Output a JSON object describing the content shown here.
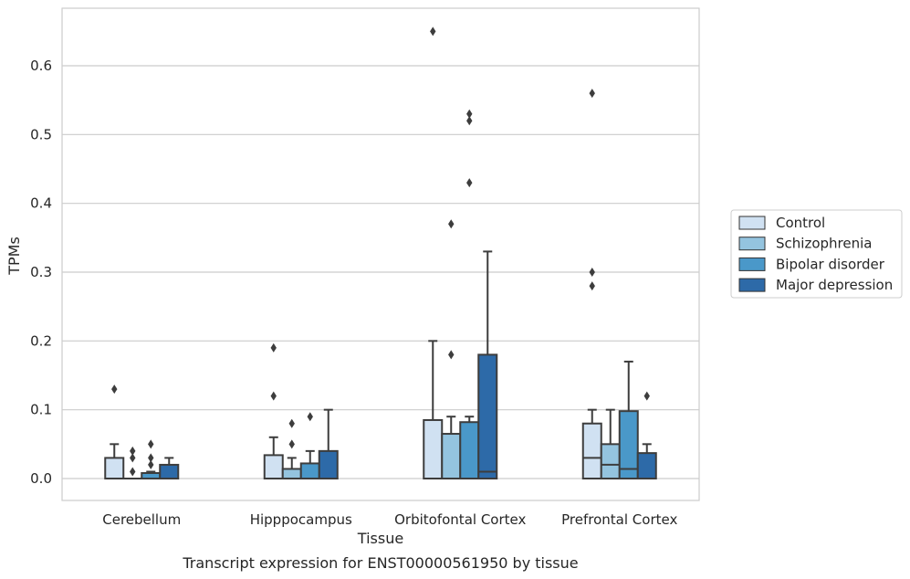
{
  "chart_data": {
    "type": "box",
    "title": "",
    "caption": "Transcript expression for ENST00000561950 by tissue",
    "xlabel": "Tissue",
    "ylabel": "TPMs",
    "ylim": [
      -0.032,
      0.685
    ],
    "yticks": [
      0.0,
      0.1,
      0.2,
      0.3,
      0.4,
      0.5,
      0.6
    ],
    "ytick_labels": [
      "0.0",
      "0.1",
      "0.2",
      "0.3",
      "0.4",
      "0.5",
      "0.6"
    ],
    "grid": "horizontal",
    "legend_position": "right",
    "categories": [
      "Cerebellum",
      "Hipppocampus",
      "Orbitofontal Cortex",
      "Prefrontal Cortex"
    ],
    "series": [
      {
        "name": "Control",
        "color": "#d0e1f2",
        "boxes": [
          {
            "q1": 0.0,
            "median": 0.0,
            "q3": 0.03,
            "whisker_low": 0.0,
            "whisker_high": 0.05,
            "outliers": [
              0.13
            ]
          },
          {
            "q1": 0.0,
            "median": 0.0,
            "q3": 0.034,
            "whisker_low": 0.0,
            "whisker_high": 0.06,
            "outliers": [
              0.12,
              0.19
            ]
          },
          {
            "q1": 0.0,
            "median": 0.0,
            "q3": 0.085,
            "whisker_low": 0.0,
            "whisker_high": 0.2,
            "outliers": [
              0.65
            ]
          },
          {
            "q1": 0.0,
            "median": 0.03,
            "q3": 0.08,
            "whisker_low": 0.0,
            "whisker_high": 0.1,
            "outliers": [
              0.28,
              0.3,
              0.56
            ]
          }
        ]
      },
      {
        "name": "Schizophrenia",
        "color": "#94c4df",
        "boxes": [
          {
            "q1": 0.0,
            "median": 0.0,
            "q3": 0.0,
            "whisker_low": 0.0,
            "whisker_high": 0.0,
            "outliers": [
              0.01,
              0.03,
              0.04
            ]
          },
          {
            "q1": 0.0,
            "median": 0.0,
            "q3": 0.014,
            "whisker_low": 0.0,
            "whisker_high": 0.03,
            "outliers": [
              0.05,
              0.08
            ]
          },
          {
            "q1": 0.0,
            "median": 0.0,
            "q3": 0.065,
            "whisker_low": 0.0,
            "whisker_high": 0.09,
            "outliers": [
              0.18,
              0.37
            ]
          },
          {
            "q1": 0.0,
            "median": 0.02,
            "q3": 0.05,
            "whisker_low": 0.0,
            "whisker_high": 0.1,
            "outliers": []
          }
        ]
      },
      {
        "name": "Bipolar disorder",
        "color": "#4a98c9",
        "boxes": [
          {
            "q1": 0.0,
            "median": 0.0,
            "q3": 0.008,
            "whisker_low": 0.0,
            "whisker_high": 0.01,
            "outliers": [
              0.02,
              0.03,
              0.05
            ]
          },
          {
            "q1": 0.0,
            "median": 0.0,
            "q3": 0.022,
            "whisker_low": 0.0,
            "whisker_high": 0.04,
            "outliers": [
              0.09
            ]
          },
          {
            "q1": 0.0,
            "median": 0.0,
            "q3": 0.082,
            "whisker_low": 0.0,
            "whisker_high": 0.09,
            "outliers": [
              0.43,
              0.52,
              0.53
            ]
          },
          {
            "q1": 0.0,
            "median": 0.014,
            "q3": 0.098,
            "whisker_low": 0.0,
            "whisker_high": 0.17,
            "outliers": []
          }
        ]
      },
      {
        "name": "Major depression",
        "color": "#2d6aa8",
        "boxes": [
          {
            "q1": 0.0,
            "median": 0.0,
            "q3": 0.02,
            "whisker_low": 0.0,
            "whisker_high": 0.03,
            "outliers": []
          },
          {
            "q1": 0.0,
            "median": 0.0,
            "q3": 0.04,
            "whisker_low": 0.0,
            "whisker_high": 0.1,
            "outliers": []
          },
          {
            "q1": 0.0,
            "median": 0.01,
            "q3": 0.18,
            "whisker_low": 0.0,
            "whisker_high": 0.33,
            "outliers": []
          },
          {
            "q1": 0.0,
            "median": 0.0,
            "q3": 0.037,
            "whisker_low": 0.0,
            "whisker_high": 0.05,
            "outliers": [
              0.12
            ]
          }
        ]
      }
    ],
    "colors": {
      "grid": "#cccccc",
      "frame": "#cccccc",
      "line": "#3d3d3d"
    }
  }
}
